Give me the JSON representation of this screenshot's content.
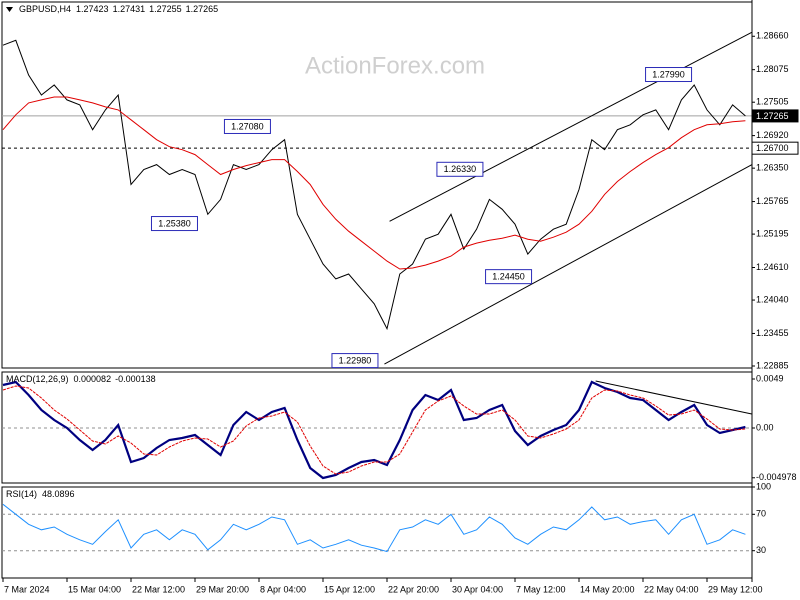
{
  "chart_data": [
    {
      "type": "line",
      "title": "GBPUSD,H4",
      "readings": [
        1.27423,
        1.27431,
        1.27255,
        1.27265
      ],
      "watermark": "ActionForex.com",
      "categories": [
        "7 Mar 2024",
        null,
        null,
        null,
        null,
        "15 Mar 04:00",
        null,
        null,
        null,
        null,
        "22 Mar 12:00",
        null,
        null,
        null,
        null,
        "29 Mar 20:00",
        null,
        null,
        null,
        null,
        "8 Apr 04:00",
        null,
        null,
        null,
        null,
        "15 Apr 12:00",
        null,
        null,
        null,
        null,
        "22 Apr 20:00",
        null,
        null,
        null,
        null,
        "30 Apr 04:00",
        null,
        null,
        null,
        null,
        "7 May 12:00",
        null,
        null,
        null,
        null,
        "14 May 20:00",
        null,
        null,
        null,
        null,
        "22 May 04:00",
        null,
        null,
        null,
        null,
        "29 May 12:00",
        null,
        null,
        null
      ],
      "series": [
        {
          "color": "#000000",
          "values": [
            1.28503,
            1.2859,
            1.27981,
            1.27632,
            1.27806,
            1.27545,
            1.27458,
            1.27023,
            1.27371,
            1.27632,
            1.26064,
            1.26326,
            1.26413,
            1.26239,
            1.26326,
            1.26239,
            1.25542,
            1.25803,
            1.26413,
            1.26326,
            1.26413,
            1.26674,
            1.26848,
            1.25542,
            1.25106,
            1.24671,
            1.2441,
            1.24497,
            1.24235,
            1.23974,
            1.23539,
            1.24497,
            1.24671,
            1.25106,
            1.25193,
            1.25542,
            1.24932,
            1.25281,
            1.25803,
            1.25629,
            1.25368,
            1.24845,
            1.25106,
            1.25281,
            1.25368,
            1.25977,
            1.26848,
            1.26674,
            1.27023,
            1.2711,
            1.27284,
            1.27371,
            1.27023,
            1.27545,
            1.27806,
            1.27371,
            1.2711,
            1.27458,
            1.27265
          ]
        },
        {
          "color": "#e00000",
          "values": [
            1.27023,
            1.27284,
            1.27493,
            1.27545,
            1.27597,
            1.27597,
            1.27545,
            1.27493,
            1.27423,
            1.27371,
            1.27197,
            1.27023,
            1.26848,
            1.26726,
            1.26674,
            1.26587,
            1.26413,
            1.26239,
            1.26326,
            1.26395,
            1.26448,
            1.265,
            1.265,
            1.26291,
            1.26064,
            1.25716,
            1.25455,
            1.25246,
            1.25071,
            1.24897,
            1.24723,
            1.24584,
            1.24601,
            1.24653,
            1.24723,
            1.2481,
            1.24967,
            1.25037,
            1.25089,
            1.25124,
            1.25176,
            1.25106,
            1.25071,
            1.25141,
            1.25228,
            1.25368,
            1.25594,
            1.2589,
            1.26117,
            1.26291,
            1.26448,
            1.26587,
            1.26709,
            1.26883,
            1.27023,
            1.2711,
            1.27128,
            1.27162,
            1.27179
          ]
        }
      ],
      "ylim": [
        1.2285,
        1.2926
      ],
      "yticks": [
        {
          "value": 1.2866,
          "label": "1.28660"
        },
        {
          "value": 1.28075,
          "label": "1.28075"
        },
        {
          "value": 1.27505,
          "label": "1.27505"
        },
        {
          "value": 1.2692,
          "label": "1.26920"
        },
        {
          "value": 1.2635,
          "label": "1.26350"
        },
        {
          "value": 1.25765,
          "label": "1.25765"
        },
        {
          "value": 1.25195,
          "label": "1.25195"
        },
        {
          "value": 1.2461,
          "label": "1.24610"
        },
        {
          "value": 1.2404,
          "label": "1.24040"
        },
        {
          "value": 1.23455,
          "label": "1.23455"
        },
        {
          "value": 1.22885,
          "label": "1.22885"
        }
      ],
      "levels": [
        {
          "value": 1.27265,
          "label": "1.27265",
          "style": "solid"
        },
        {
          "value": 1.267,
          "label": "1.26700",
          "style": "dashed"
        }
      ],
      "annotations": [
        {
          "x": 17.3,
          "value": 1.2708,
          "label": "1.27080"
        },
        {
          "x": 11.6,
          "value": 1.2538,
          "label": "1.25380"
        },
        {
          "x": 25.7,
          "value": 1.2298,
          "label": "1.22980"
        },
        {
          "x": 33.9,
          "value": 1.2633,
          "label": "1.26330"
        },
        {
          "x": 37.7,
          "value": 1.2445,
          "label": "1.24450"
        },
        {
          "x": 50.2,
          "value": 1.2799,
          "label": "1.27990"
        }
      ],
      "trendlines": [
        {
          "x": [
            30.2,
            58.5
          ],
          "values": [
            1.2542,
            1.2873
          ]
        },
        {
          "x": [
            29.8,
            58.5
          ],
          "values": [
            1.2292,
            1.2641
          ]
        }
      ]
    },
    {
      "type": "line",
      "title": "MACD(12,26,9)",
      "readings": [
        8.2e-05,
        -0.000138
      ],
      "series": [
        {
          "color": "#000080",
          "values": [
            0.0043,
            0.0046,
            0.0033,
            0.0018,
            0.0008,
            0,
            -0.0012,
            -0.0022,
            -0.0012,
            0.0003,
            -0.0034,
            -0.003,
            -0.002,
            -0.0012,
            -0.001,
            -0.0007,
            -0.0017,
            -0.0027,
            0.0003,
            0.0016,
            0.0008,
            0.0016,
            0.002,
            -0.0012,
            -0.004,
            -0.005,
            -0.0047,
            -0.004,
            -0.0034,
            -0.0032,
            -0.0037,
            -0.0012,
            0.0018,
            0.0033,
            0.0028,
            0.0038,
            0.0008,
            0.001,
            0.0018,
            0.0023,
            -0.0003,
            -0.0017,
            -0.0008,
            -0.0002,
            0.0003,
            0.0018,
            0.0046,
            0.004,
            0.0036,
            0.003,
            0.0028,
            0.0018,
            0.0008,
            0.0016,
            0.0023,
            0.0003,
            -0.0005,
            -0.0002,
            0.0001
          ]
        },
        {
          "color": "#e00000",
          "values": [
            0.0038,
            0.0042,
            0.004,
            0.003,
            0.0018,
            0.0009,
            -0.0002,
            -0.0013,
            -0.0016,
            -0.0008,
            -0.0015,
            -0.0026,
            -0.0027,
            -0.0019,
            -0.0013,
            -0.001,
            -0.0011,
            -0.0019,
            -0.0013,
            0.0002,
            0.001,
            0.0012,
            0.0016,
            0.0006,
            -0.0018,
            -0.0038,
            -0.0046,
            -0.0044,
            -0.0038,
            -0.0034,
            -0.0034,
            -0.0026,
            -0.0004,
            0.0018,
            0.0027,
            0.0032,
            0.0022,
            0.0014,
            0.0014,
            0.0018,
            0.0008,
            -0.0008,
            -0.001,
            -0.0006,
            -0.0001,
            0.0008,
            0.003,
            0.0038,
            0.0037,
            0.0033,
            0.003,
            0.0022,
            0.0013,
            0.0014,
            0.0018,
            0.0009,
            -0.0001,
            -0.0002,
            -0.0001
          ]
        }
      ],
      "ylim": [
        -0.0055,
        0.0056
      ],
      "yticks": [
        0.0049,
        {
          "value": 0,
          "label": "0.00"
        },
        -0.004978
      ],
      "levels": [
        0
      ],
      "trendlines": [
        {
          "x": [
            46.3,
            58.5
          ],
          "values": [
            0.0047,
            0.0014
          ]
        }
      ]
    },
    {
      "type": "line",
      "title": "RSI(14)",
      "readings": [
        48.0896
      ],
      "series": [
        {
          "color": "#1e90ff",
          "values": [
            81,
            70,
            59,
            53,
            56,
            48,
            42,
            37,
            51,
            64,
            33,
            48,
            53,
            42,
            53,
            48,
            31,
            42,
            59,
            53,
            59,
            67,
            64,
            37,
            42,
            33,
            37,
            42,
            36,
            33,
            29,
            53,
            56,
            64,
            59,
            70,
            48,
            53,
            67,
            59,
            44,
            37,
            48,
            56,
            53,
            64,
            78,
            64,
            67,
            59,
            62,
            64,
            48,
            64,
            70,
            37,
            42,
            53,
            48
          ]
        }
      ],
      "ylim": [
        0,
        100
      ],
      "yticks": [
        100,
        70,
        30
      ],
      "levels": [
        70,
        30
      ]
    }
  ]
}
